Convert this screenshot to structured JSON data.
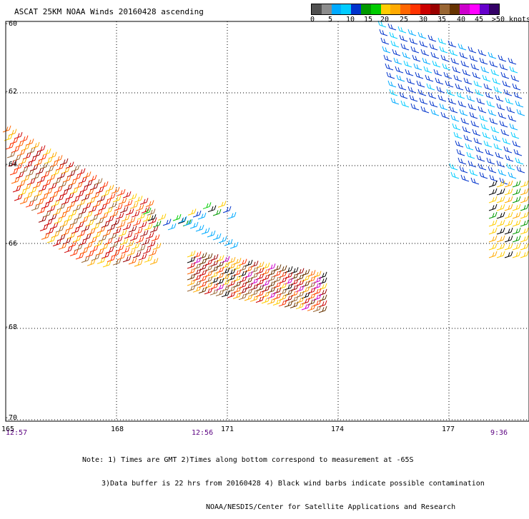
{
  "title": "ASCAT 25KM NOAA Winds 20160428 ascending",
  "legend": {
    "colors": [
      "#505050",
      "#8c8c8c",
      "#00aaff",
      "#00ccff",
      "#0033cc",
      "#009900",
      "#00cc00",
      "#ffcc00",
      "#ffaa00",
      "#ff6600",
      "#ff3300",
      "#cc0000",
      "#990000",
      "#996633",
      "#663300",
      "#cc00cc",
      "#ff00ff",
      "#6600cc",
      "#330066"
    ],
    "ticks": [
      "0",
      "5",
      "10",
      "15",
      "20",
      "25",
      "30",
      "35",
      "40",
      "45",
      ">50 knots"
    ]
  },
  "axes": {
    "lat_labels": [
      "-60",
      "-62",
      "-64",
      "-66",
      "-68",
      "-70"
    ],
    "lon_labels": [
      "165",
      "168",
      "171",
      "174",
      "177"
    ]
  },
  "times": [
    "12:57",
    "12:56",
    "9:36"
  ],
  "notes": [
    "Note: 1) Times are GMT 2)Times along bottom correspond to measurement at -65S",
    "3)Data buffer is 22 hrs from 20160428 4) Black wind barbs indicate possible contamination",
    "NOAA/NESDIS/Center for Satellite Applications and Research"
  ]
}
